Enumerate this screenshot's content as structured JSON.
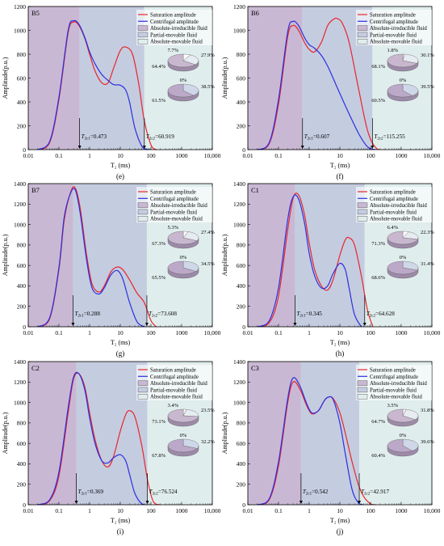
{
  "figure": {
    "colors": {
      "saturation": "#e8262b",
      "centrifugal": "#2b2fe0",
      "irreducible_zone": "#c9b8d3",
      "partial_zone": "#c4cce0",
      "movable_zone": "#e0eded",
      "pie_top_outer": "#e6ecf1",
      "pie_top_mid": "#c9b7cf",
      "pie_top_inner": "#ffffff",
      "pie_bottom_a": "#cfd8e8",
      "pie_bottom_b": "#bca9c9",
      "pie_side": "#9d8aa8"
    },
    "legend_entries": [
      "Saturation amplitude",
      "Centrifugal amplitude",
      "Absolute-irreducible fluid",
      "Partial-movable fluid",
      "Absolute-movable fluid"
    ]
  },
  "chart_data": [
    {
      "type": "line",
      "panel": "(e)",
      "sample": "B5",
      "xlabel": "T₂ (ms)",
      "ylabel": "Amplitude(p.u.)",
      "xscale": "log",
      "xlim": [
        0.01,
        10000
      ],
      "ylim": [
        0,
        1200
      ],
      "xticks": [
        "0.01",
        "0.1",
        "1",
        "10",
        "100",
        "1000",
        "10,000"
      ],
      "yticks": [
        0,
        200,
        400,
        600,
        800,
        1000,
        1200
      ],
      "t2c1": 0.473,
      "t2c2": 60.919,
      "t2c1_label": "=0.473",
      "t2c2_label": "=60.919",
      "t2c1_sub": "2c1",
      "t2c2_sub": "2c2",
      "series": [
        {
          "name": "Saturation amplitude",
          "color": "#e8262b",
          "x": [
            0.02,
            0.05,
            0.1,
            0.2,
            0.3,
            0.45,
            0.7,
            1.0,
            1.5,
            2.5,
            4,
            6,
            10,
            15,
            25,
            40,
            60,
            100,
            150
          ],
          "y": [
            0,
            60,
            420,
            980,
            1070,
            1040,
            930,
            800,
            660,
            560,
            560,
            680,
            830,
            860,
            800,
            550,
            250,
            40,
            0
          ]
        },
        {
          "name": "Centrifugal amplitude",
          "color": "#2b2fe0",
          "x": [
            0.02,
            0.05,
            0.1,
            0.2,
            0.3,
            0.45,
            0.7,
            1.0,
            1.5,
            2.5,
            4,
            6,
            10,
            15,
            20,
            30,
            50,
            70,
            100
          ],
          "y": [
            0,
            70,
            440,
            1000,
            1080,
            1050,
            940,
            820,
            720,
            630,
            580,
            545,
            540,
            500,
            400,
            180,
            30,
            5,
            0
          ]
        }
      ],
      "pie_top": {
        "values": [
          7.7,
          27.9,
          64.4
        ],
        "labels": [
          "7.7%",
          "27.9%",
          "64.4%"
        ]
      },
      "pie_bottom": {
        "values": [
          0,
          38.5,
          61.5
        ],
        "labels": [
          "0%",
          "38.5%",
          "61.5%"
        ]
      }
    },
    {
      "type": "line",
      "panel": "(f)",
      "sample": "B6",
      "xlabel": "T₂ (ms)",
      "ylabel": "Amplitude(p.u.)",
      "xscale": "log",
      "xlim": [
        0.01,
        10000
      ],
      "ylim": [
        0,
        1200
      ],
      "xticks": [
        "0.01",
        "0.1",
        "1",
        "10",
        "100",
        "1000",
        "10,000"
      ],
      "yticks": [
        0,
        200,
        400,
        600,
        800,
        1000,
        1200
      ],
      "t2c1": 0.607,
      "t2c2": 115.255,
      "t2c1_label": "=0.607",
      "t2c2_label": "=115.255",
      "t2c1_sub": "2c1",
      "t2c2_sub": "2c2",
      "series": [
        {
          "name": "Saturation amplitude",
          "color": "#e8262b",
          "x": [
            0.02,
            0.05,
            0.1,
            0.2,
            0.3,
            0.45,
            0.7,
            1.0,
            1.5,
            2.5,
            4,
            6,
            8,
            12,
            20,
            40,
            80,
            150,
            300
          ],
          "y": [
            0,
            50,
            380,
            950,
            1040,
            1000,
            900,
            840,
            820,
            900,
            1040,
            1090,
            1100,
            1060,
            900,
            520,
            160,
            15,
            0
          ]
        },
        {
          "name": "Centrifugal amplitude",
          "color": "#2b2fe0",
          "x": [
            0.02,
            0.05,
            0.1,
            0.2,
            0.3,
            0.45,
            0.7,
            1.0,
            1.5,
            2.5,
            4,
            6,
            10,
            20,
            40,
            70,
            100,
            150
          ],
          "y": [
            0,
            60,
            420,
            990,
            1075,
            1040,
            940,
            880,
            850,
            790,
            700,
            600,
            470,
            300,
            140,
            40,
            8,
            0
          ]
        }
      ],
      "pie_top": {
        "values": [
          1.8,
          30.1,
          68.1
        ],
        "labels": [
          "1.8%",
          "30.1%",
          "68.1%"
        ]
      },
      "pie_bottom": {
        "values": [
          0,
          39.5,
          60.5
        ],
        "labels": [
          "0%",
          "39.5%",
          "60.5%"
        ]
      }
    },
    {
      "type": "line",
      "panel": "(g)",
      "sample": "B7",
      "xlabel": "T₂ (ms)",
      "ylabel": "Amplitude(p.u.)",
      "xscale": "log",
      "xlim": [
        0.01,
        10000
      ],
      "ylim": [
        0,
        1400
      ],
      "xticks": [
        "0.01",
        "0.1",
        "1",
        "10",
        "100",
        "1000",
        "10,000"
      ],
      "yticks": [
        0,
        200,
        400,
        600,
        800,
        1000,
        1200,
        1400
      ],
      "t2c1": 0.288,
      "t2c2": 73.608,
      "t2c1_label": "=0.288",
      "t2c2_label": "=73.608",
      "t2c1_sub": "2c1",
      "t2c2_sub": "2c2",
      "series": [
        {
          "name": "Saturation amplitude",
          "color": "#e8262b",
          "x": [
            0.02,
            0.05,
            0.1,
            0.15,
            0.25,
            0.35,
            0.5,
            0.8,
            1.2,
            2,
            3,
            5,
            8,
            12,
            20,
            35,
            60,
            100,
            150
          ],
          "y": [
            0,
            80,
            560,
            1050,
            1330,
            1350,
            1150,
            700,
            420,
            340,
            400,
            540,
            585,
            560,
            460,
            330,
            240,
            60,
            0
          ]
        },
        {
          "name": "Centrifugal amplitude",
          "color": "#2b2fe0",
          "x": [
            0.02,
            0.05,
            0.1,
            0.15,
            0.25,
            0.35,
            0.5,
            0.8,
            1.2,
            2,
            3,
            5,
            8,
            12,
            20,
            35,
            60
          ],
          "y": [
            0,
            90,
            580,
            1080,
            1320,
            1330,
            1100,
            650,
            380,
            320,
            380,
            510,
            550,
            470,
            240,
            50,
            0
          ]
        }
      ],
      "pie_top": {
        "values": [
          5.3,
          27.4,
          67.3
        ],
        "labels": [
          "5.3%",
          "27.4%",
          "67.3%"
        ]
      },
      "pie_bottom": {
        "values": [
          0,
          34.5,
          65.5
        ],
        "labels": [
          "0%",
          "34.5%",
          "65.5%"
        ]
      }
    },
    {
      "type": "line",
      "panel": "(h)",
      "sample": "C1",
      "xlabel": "T₂ (ms)",
      "ylabel": "Amplitude(p.u.)",
      "xscale": "log",
      "xlim": [
        0.01,
        10000
      ],
      "ylim": [
        0,
        1400
      ],
      "xticks": [
        "0.01",
        "0.1",
        "1",
        "10",
        "100",
        "1000",
        "10,000"
      ],
      "yticks": [
        0,
        200,
        400,
        600,
        800,
        1000,
        1200,
        1400
      ],
      "t2c1": 0.345,
      "t2c2": 64.628,
      "t2c1_label": "=0.345",
      "t2c2_label": "=64.628",
      "t2c1_sub": "2c1",
      "t2c2_sub": "2c2",
      "series": [
        {
          "name": "Saturation amplitude",
          "color": "#e8262b",
          "x": [
            0.02,
            0.05,
            0.1,
            0.2,
            0.3,
            0.45,
            0.7,
            1.0,
            1.5,
            2.5,
            4,
            6,
            10,
            15,
            20,
            30,
            50,
            80,
            120
          ],
          "y": [
            0,
            40,
            300,
            950,
            1260,
            1290,
            1100,
            820,
            560,
            400,
            360,
            460,
            700,
            850,
            870,
            800,
            500,
            160,
            0
          ]
        },
        {
          "name": "Centrifugal amplitude",
          "color": "#2b2fe0",
          "x": [
            0.02,
            0.05,
            0.1,
            0.2,
            0.3,
            0.45,
            0.7,
            1.0,
            1.5,
            2.5,
            4,
            6,
            10,
            15,
            20,
            30,
            50
          ],
          "y": [
            0,
            60,
            380,
            1050,
            1270,
            1250,
            1020,
            720,
            500,
            380,
            400,
            520,
            620,
            560,
            380,
            120,
            0
          ]
        }
      ],
      "pie_top": {
        "values": [
          6.4,
          22.3,
          71.3
        ],
        "labels": [
          "6.4%",
          "22.3%",
          "71.3%"
        ]
      },
      "pie_bottom": {
        "values": [
          0,
          31.4,
          68.6
        ],
        "labels": [
          "0%",
          "31.4%",
          "68.6%"
        ]
      }
    },
    {
      "type": "line",
      "panel": "(i)",
      "sample": "C2",
      "xlabel": "T₂ (ms)",
      "ylabel": "Amplitude(p.u.)",
      "xscale": "log",
      "xlim": [
        0.01,
        10000
      ],
      "ylim": [
        0,
        1400
      ],
      "xticks": [
        "0.01",
        "0.1",
        "1",
        "10",
        "100",
        "1000",
        "10,000"
      ],
      "yticks": [
        0,
        200,
        400,
        600,
        800,
        1000,
        1200,
        1400
      ],
      "t2c1": 0.369,
      "t2c2": 76.524,
      "t2c1_label": "=0.369",
      "t2c2_label": "=76.524",
      "t2c1_sub": "2c1",
      "t2c2_sub": "2c2",
      "series": [
        {
          "name": "Saturation amplitude",
          "color": "#e8262b",
          "x": [
            0.02,
            0.05,
            0.1,
            0.2,
            0.3,
            0.45,
            0.7,
            1.0,
            1.5,
            2.5,
            4,
            6,
            10,
            15,
            20,
            30,
            50,
            80,
            120,
            200
          ],
          "y": [
            0,
            40,
            280,
            900,
            1230,
            1280,
            1150,
            900,
            640,
            430,
            370,
            470,
            720,
            880,
            920,
            860,
            580,
            220,
            30,
            0
          ]
        },
        {
          "name": "Centrifugal amplitude",
          "color": "#2b2fe0",
          "x": [
            0.02,
            0.05,
            0.1,
            0.2,
            0.3,
            0.45,
            0.7,
            1.0,
            1.5,
            2.5,
            4,
            6,
            10,
            15,
            20,
            30,
            50,
            80
          ],
          "y": [
            0,
            50,
            320,
            950,
            1250,
            1280,
            1120,
            850,
            600,
            430,
            410,
            460,
            490,
            430,
            300,
            110,
            10,
            0
          ]
        }
      ],
      "pie_top": {
        "values": [
          3.4,
          23.5,
          73.1
        ],
        "labels": [
          "3.4%",
          "23.5%",
          "73.1%"
        ]
      },
      "pie_bottom": {
        "values": [
          0,
          32.2,
          67.8
        ],
        "labels": [
          "0%",
          "32.2%",
          "67.8%"
        ]
      }
    },
    {
      "type": "line",
      "panel": "(j)",
      "sample": "C3",
      "xlabel": "T₂ (ms)",
      "ylabel": "Amplitude(p.u.)",
      "xscale": "log",
      "xlim": [
        0.01,
        10000
      ],
      "ylim": [
        0,
        1400
      ],
      "xticks": [
        "0.01",
        "0.1",
        "1",
        "10",
        "100",
        "1000",
        "10,000"
      ],
      "yticks": [
        0,
        200,
        400,
        600,
        800,
        1000,
        1200,
        1400
      ],
      "t2c1": 0.542,
      "t2c2": 42.917,
      "t2c1_label": "=0.542",
      "t2c2_label": "=42.917",
      "t2c1_sub": "2c1",
      "t2c2_sub": "2c2",
      "series": [
        {
          "name": "Saturation amplitude",
          "color": "#e8262b",
          "x": [
            0.02,
            0.05,
            0.1,
            0.2,
            0.3,
            0.5,
            0.8,
            1.2,
            2,
            3,
            4,
            6,
            10,
            15,
            25,
            40,
            60,
            100,
            150
          ],
          "y": [
            0,
            50,
            380,
            1000,
            1200,
            1130,
            980,
            890,
            920,
            1010,
            1050,
            1040,
            900,
            700,
            420,
            200,
            80,
            10,
            0
          ]
        },
        {
          "name": "Centrifugal amplitude",
          "color": "#2b2fe0",
          "x": [
            0.02,
            0.05,
            0.1,
            0.2,
            0.3,
            0.5,
            0.8,
            1.2,
            2,
            3,
            4,
            6,
            10,
            15,
            25,
            40,
            60
          ],
          "y": [
            0,
            60,
            420,
            1040,
            1240,
            1160,
            1000,
            900,
            920,
            1010,
            1050,
            1030,
            800,
            500,
            150,
            20,
            0
          ]
        }
      ],
      "pie_top": {
        "values": [
          3.5,
          31.8,
          64.7
        ],
        "labels": [
          "3.5%",
          "31.8%",
          "64.7%"
        ]
      },
      "pie_bottom": {
        "values": [
          0,
          39.6,
          60.4
        ],
        "labels": [
          "0%",
          "39.6%",
          "60.4%"
        ]
      }
    }
  ]
}
